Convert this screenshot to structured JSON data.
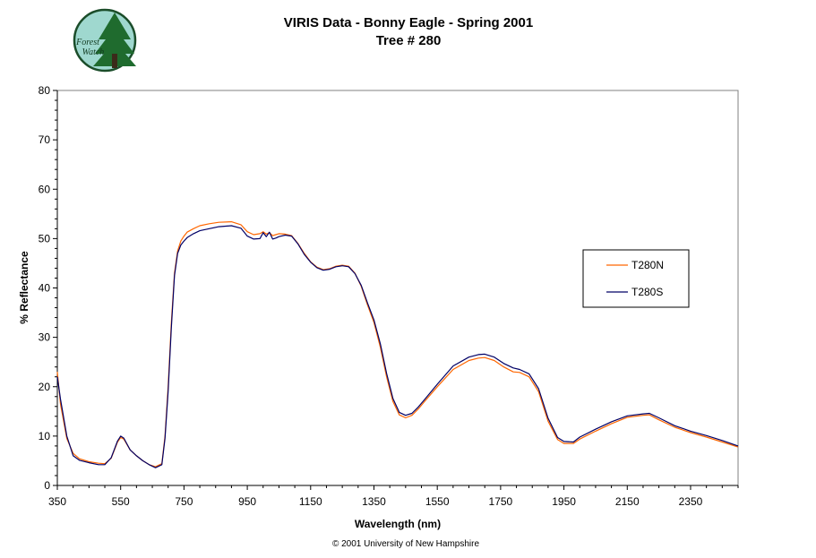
{
  "logo": {
    "text_line1": "Forest",
    "text_line2": "Watch"
  },
  "copyright": "© 2001 University of New Hampshire",
  "chart_data": {
    "type": "line",
    "title": "VIRIS Data - Bonny Eagle - Spring 2001",
    "subtitle": "Tree # 280",
    "xlabel": "Wavelength (nm)",
    "ylabel": "% Reflectance",
    "xlim": [
      350,
      2500
    ],
    "ylim": [
      0,
      80
    ],
    "x_ticks": [
      350,
      550,
      750,
      950,
      1150,
      1350,
      1550,
      1750,
      1950,
      2150,
      2350
    ],
    "y_ticks": [
      0,
      10,
      20,
      30,
      40,
      50,
      60,
      70,
      80
    ],
    "grid": false,
    "legend_position": "right",
    "series": [
      {
        "name": "T280N",
        "color": "#ff6600",
        "x": [
          350,
          360,
          380,
          400,
          420,
          450,
          480,
          500,
          520,
          540,
          550,
          560,
          580,
          600,
          620,
          640,
          660,
          680,
          690,
          700,
          710,
          720,
          730,
          740,
          750,
          760,
          780,
          800,
          830,
          860,
          900,
          930,
          950,
          970,
          990,
          1000,
          1010,
          1020,
          1030,
          1040,
          1050,
          1070,
          1090,
          1110,
          1130,
          1150,
          1170,
          1190,
          1210,
          1230,
          1250,
          1270,
          1290,
          1310,
          1330,
          1350,
          1370,
          1390,
          1410,
          1430,
          1450,
          1470,
          1490,
          1510,
          1550,
          1600,
          1650,
          1680,
          1700,
          1730,
          1760,
          1790,
          1810,
          1840,
          1870,
          1900,
          1930,
          1950,
          1980,
          2000,
          2050,
          2100,
          2150,
          2200,
          2220,
          2250,
          2300,
          2350,
          2400,
          2450,
          2500
        ],
        "values": [
          23.0,
          16.5,
          9.5,
          6.5,
          5.4,
          4.8,
          4.5,
          4.4,
          5.5,
          8.8,
          9.7,
          9.4,
          7.2,
          6.0,
          5.0,
          4.2,
          3.8,
          4.4,
          10.0,
          20.0,
          33.0,
          43.0,
          47.5,
          49.5,
          50.5,
          51.3,
          52.0,
          52.6,
          53.0,
          53.3,
          53.4,
          52.8,
          51.4,
          50.8,
          51.0,
          51.4,
          50.9,
          51.2,
          50.6,
          50.8,
          51.0,
          50.9,
          50.6,
          49.0,
          47.0,
          45.3,
          44.2,
          43.7,
          43.9,
          44.4,
          44.6,
          44.4,
          43.0,
          40.3,
          36.5,
          33.0,
          28.0,
          22.0,
          17.0,
          14.3,
          13.7,
          14.2,
          15.5,
          17.0,
          20.0,
          23.5,
          25.3,
          25.8,
          25.9,
          25.3,
          24.0,
          23.0,
          22.9,
          22.0,
          19.0,
          13.0,
          9.3,
          8.5,
          8.5,
          9.4,
          11.0,
          12.5,
          13.8,
          14.2,
          14.3,
          13.3,
          11.8,
          10.7,
          9.8,
          8.8,
          7.8
        ]
      },
      {
        "name": "T280S",
        "color": "#000066",
        "x": [
          350,
          360,
          380,
          400,
          420,
          450,
          480,
          500,
          520,
          540,
          550,
          560,
          580,
          600,
          620,
          640,
          660,
          680,
          690,
          700,
          710,
          720,
          730,
          740,
          750,
          760,
          780,
          800,
          830,
          860,
          900,
          930,
          950,
          970,
          990,
          1000,
          1010,
          1020,
          1030,
          1040,
          1050,
          1070,
          1090,
          1110,
          1130,
          1150,
          1170,
          1190,
          1210,
          1230,
          1250,
          1270,
          1290,
          1310,
          1330,
          1350,
          1370,
          1390,
          1410,
          1430,
          1450,
          1470,
          1490,
          1510,
          1550,
          1600,
          1650,
          1680,
          1700,
          1730,
          1760,
          1790,
          1810,
          1840,
          1870,
          1900,
          1930,
          1950,
          1980,
          2000,
          2050,
          2100,
          2150,
          2200,
          2220,
          2250,
          2300,
          2350,
          2400,
          2450,
          2500
        ],
        "values": [
          22.0,
          17.5,
          10.0,
          6.0,
          5.1,
          4.6,
          4.2,
          4.2,
          5.6,
          9.0,
          10.0,
          9.6,
          7.2,
          6.0,
          5.0,
          4.2,
          3.6,
          4.2,
          9.5,
          19.0,
          32.0,
          42.5,
          47.0,
          48.7,
          49.5,
          50.2,
          51.0,
          51.6,
          52.0,
          52.4,
          52.6,
          52.1,
          50.5,
          49.9,
          50.0,
          51.2,
          50.4,
          51.3,
          49.9,
          50.1,
          50.4,
          50.7,
          50.5,
          48.9,
          46.8,
          45.2,
          44.1,
          43.6,
          43.8,
          44.3,
          44.5,
          44.3,
          42.9,
          40.5,
          36.9,
          33.5,
          28.7,
          22.7,
          17.6,
          14.8,
          14.2,
          14.6,
          15.9,
          17.4,
          20.5,
          24.2,
          26.0,
          26.5,
          26.6,
          26.0,
          24.7,
          23.8,
          23.5,
          22.6,
          19.6,
          13.6,
          9.7,
          8.9,
          8.8,
          9.8,
          11.4,
          12.9,
          14.1,
          14.5,
          14.6,
          13.7,
          12.1,
          11.0,
          10.1,
          9.1,
          8.0
        ]
      }
    ]
  }
}
